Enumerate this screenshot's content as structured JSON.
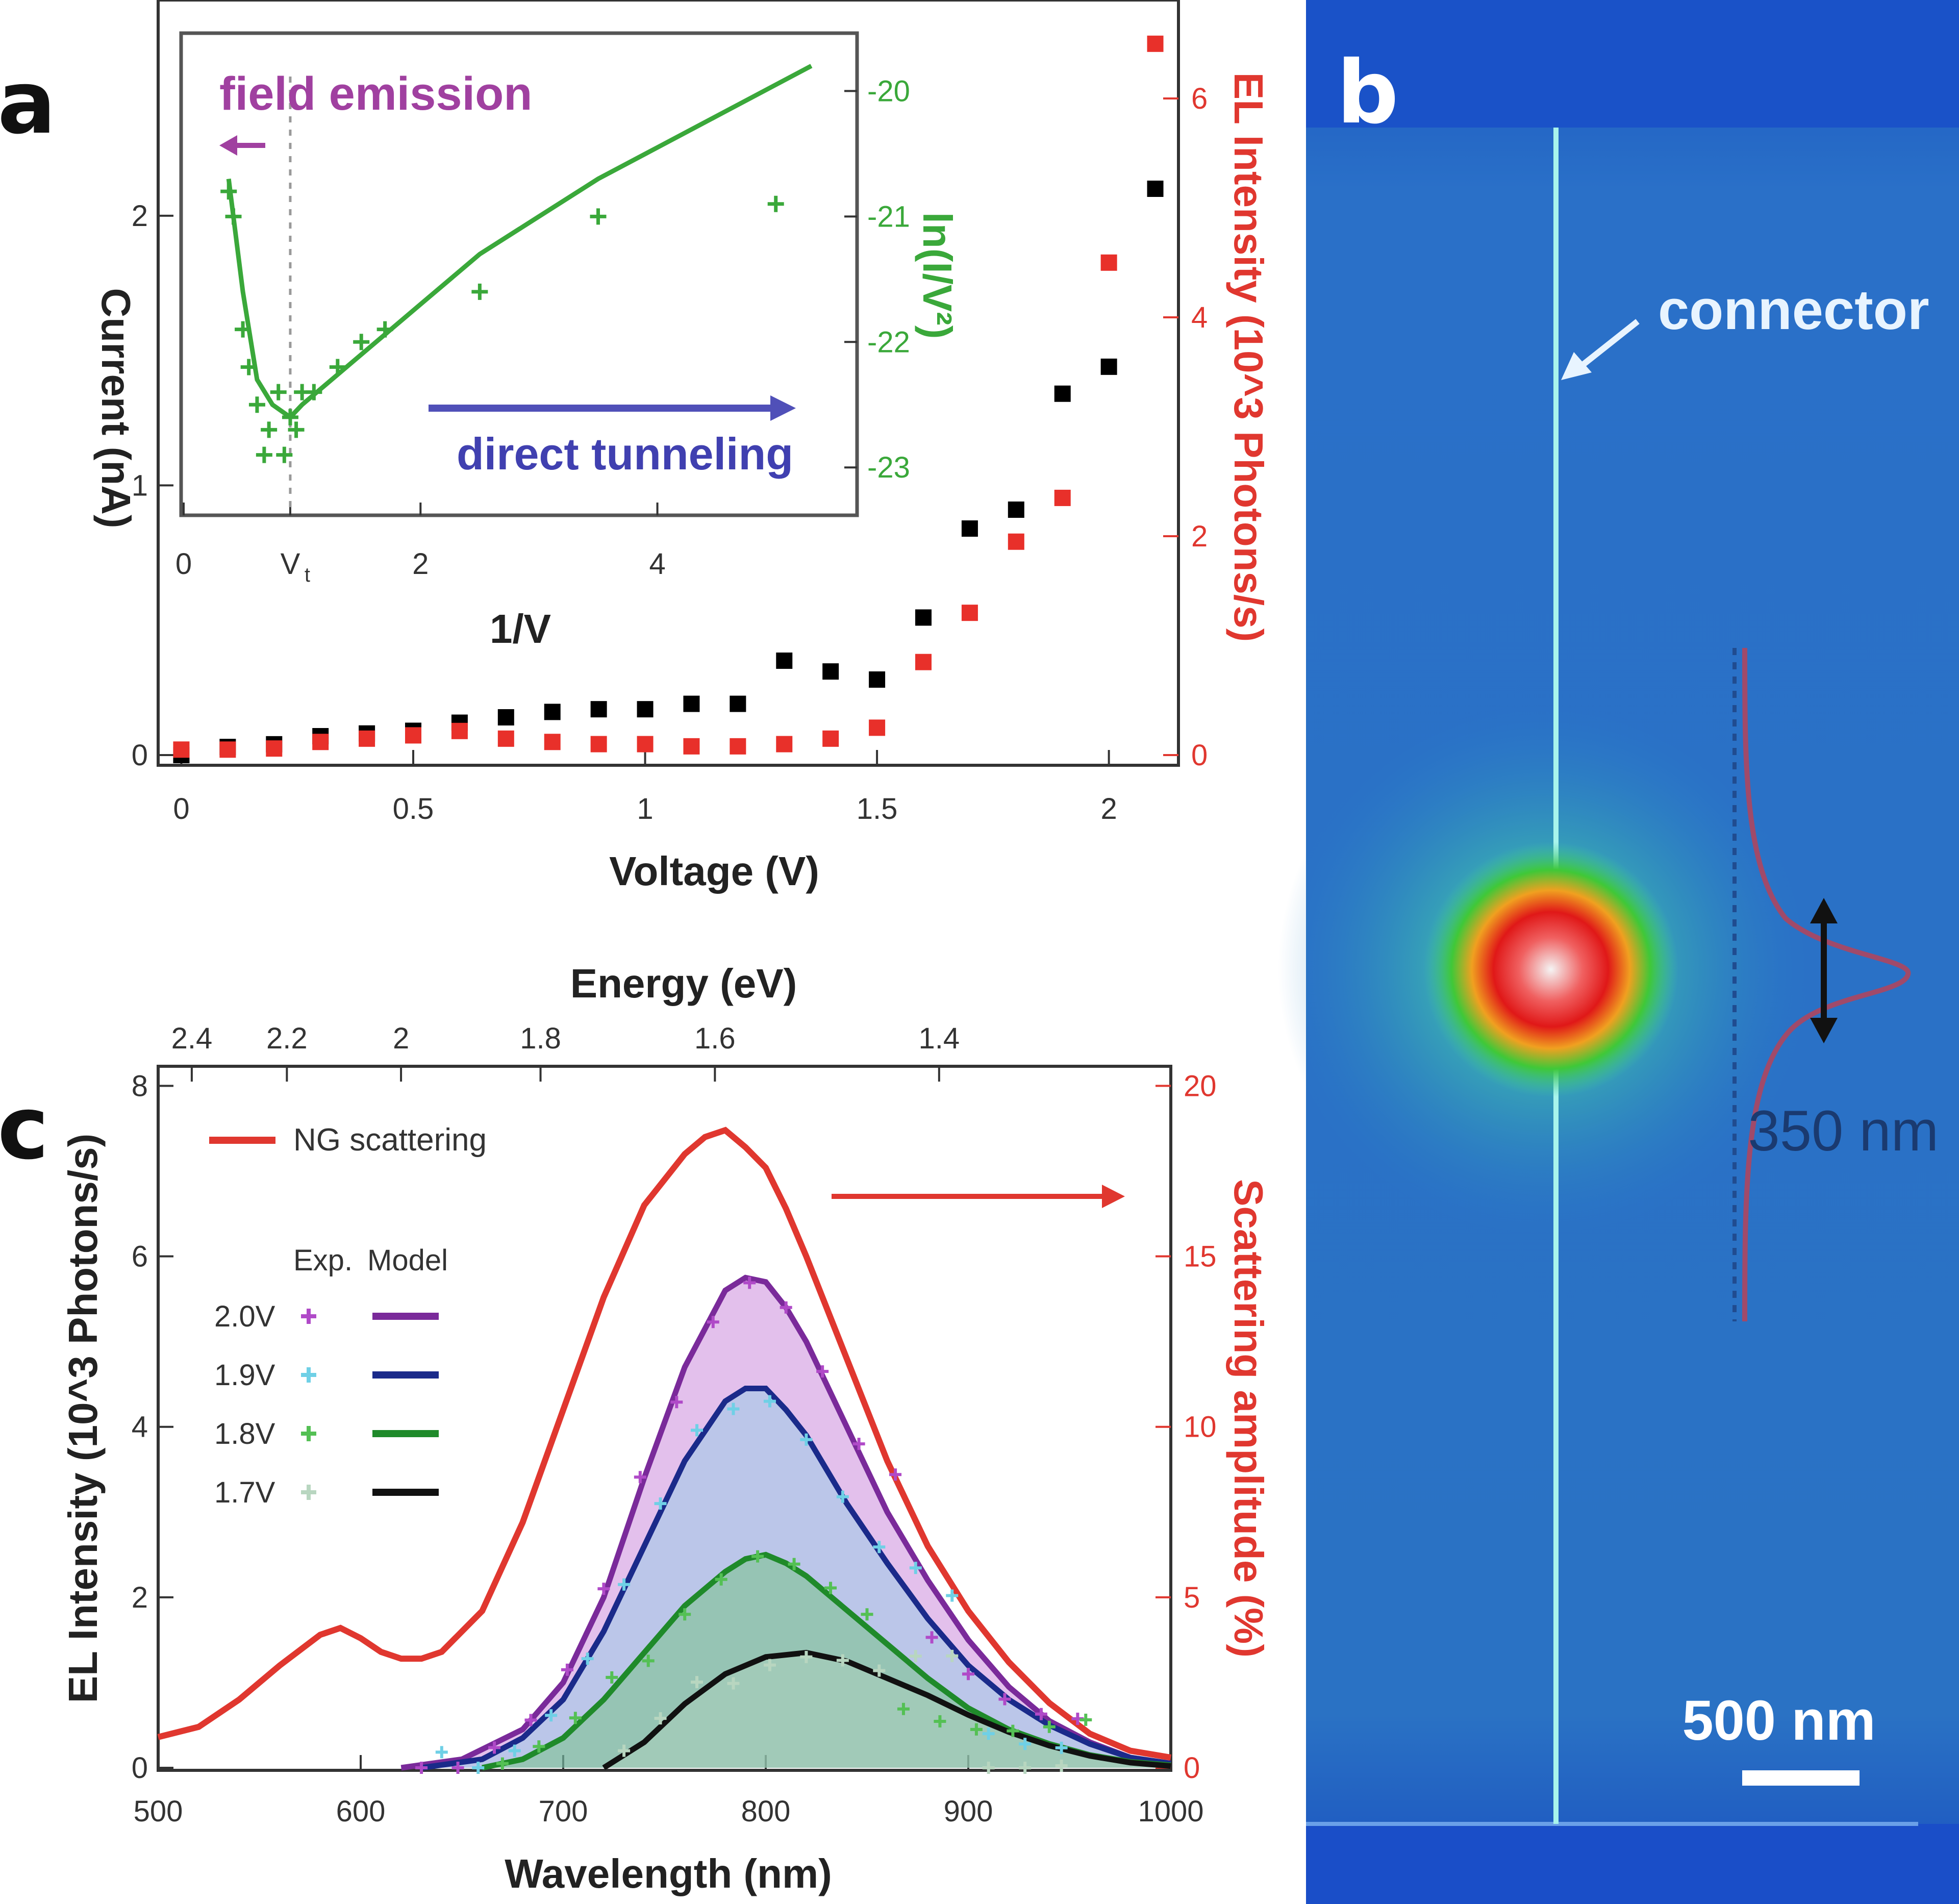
{
  "figure": {
    "panels": [
      {
        "id": "a",
        "letter": "a"
      },
      {
        "id": "b",
        "letter": "b"
      },
      {
        "id": "c",
        "letter": "c"
      }
    ]
  },
  "chart_data": [
    {
      "id": "a",
      "type": "scatter",
      "xlabel": "Voltage (V)",
      "ylabel": "Current (nA)",
      "ylabel_right": "EL Intensity (10^3 Photons/s)",
      "xlim": [
        -0.05,
        2.15
      ],
      "ylim": [
        0,
        2.8
      ],
      "ylim_right": [
        0,
        6.9
      ],
      "xticks": [
        "0",
        "0.5",
        "1",
        "1.5",
        "2"
      ],
      "xtick_values": [
        0,
        0.5,
        1,
        1.5,
        2
      ],
      "yticks": [
        "0",
        "1",
        "2"
      ],
      "ytick_values": [
        0,
        1,
        2
      ],
      "yticks_right": [
        "0",
        "2",
        "4",
        "6"
      ],
      "ytick_values_right": [
        0,
        2,
        4,
        6
      ],
      "series": [
        {
          "axis": "left",
          "color": "#000000",
          "x": [
            0,
            0.1,
            0.2,
            0.3,
            0.4,
            0.5,
            0.6,
            0.7,
            0.8,
            0.9,
            1.0,
            1.1,
            1.2,
            1.3,
            1.4,
            1.5,
            1.6,
            1.7,
            1.8,
            1.9,
            2.0,
            2.1
          ],
          "y": [
            0.0,
            0.03,
            0.04,
            0.07,
            0.08,
            0.09,
            0.12,
            0.14,
            0.16,
            0.17,
            0.17,
            0.19,
            0.19,
            0.35,
            0.31,
            0.28,
            0.51,
            0.84,
            0.91,
            1.34,
            1.44,
            2.1
          ]
        },
        {
          "axis": "right",
          "color": "#e8302a",
          "x": [
            0,
            0.1,
            0.2,
            0.3,
            0.4,
            0.5,
            0.6,
            0.7,
            0.8,
            0.9,
            1.0,
            1.1,
            1.2,
            1.3,
            1.4,
            1.5,
            1.6,
            1.7,
            1.8,
            1.9,
            2.0,
            2.1
          ],
          "y": [
            0.05,
            0.05,
            0.06,
            0.12,
            0.15,
            0.18,
            0.22,
            0.15,
            0.12,
            0.1,
            0.1,
            0.08,
            0.08,
            0.1,
            0.15,
            0.25,
            0.85,
            1.3,
            1.95,
            2.35,
            4.5,
            6.5
          ]
        }
      ],
      "inset": {
        "type": "scatter",
        "xlabel": "1/V",
        "ylabel": "ln(I/V²)",
        "xlim": [
          0,
          5.6
        ],
        "ylim": [
          -23.3,
          -19.6
        ],
        "xticks": [
          "0",
          "V",
          "2",
          "4"
        ],
        "xtick_sub": "t",
        "xtick_values": [
          0,
          0.9,
          2,
          4
        ],
        "yticks": [
          "-20",
          "-21",
          "-22",
          "-23"
        ],
        "ytick_values": [
          -20,
          -21,
          -22,
          -23
        ],
        "vt": 0.9,
        "color": "#3aa83a",
        "points_x": [
          0.38,
          0.42,
          0.5,
          0.55,
          0.62,
          0.68,
          0.72,
          0.8,
          0.85,
          0.9,
          0.95,
          1.0,
          1.1,
          1.3,
          1.5,
          1.7,
          2.5,
          3.5,
          5.0
        ],
        "points_y": [
          -20.8,
          -21.0,
          -21.9,
          -22.2,
          -22.5,
          -22.9,
          -22.7,
          -22.4,
          -22.9,
          -22.6,
          -22.7,
          -22.4,
          -22.4,
          -22.2,
          -22.0,
          -21.9,
          -21.6,
          -21.0,
          -20.9
        ],
        "fit_x": [
          0.38,
          0.5,
          0.62,
          0.75,
          0.9,
          1.0,
          1.5,
          2.0,
          2.5,
          3.0,
          3.5,
          4.0,
          4.5,
          5.0,
          5.3
        ],
        "fit_y": [
          -20.7,
          -21.6,
          -22.3,
          -22.5,
          -22.6,
          -22.5,
          -22.1,
          -21.7,
          -21.3,
          -21.0,
          -20.7,
          -20.45,
          -20.2,
          -19.95,
          -19.8
        ],
        "annotations": [
          {
            "text": "field emission",
            "color": "#a040a0"
          },
          {
            "text": "direct tunneling",
            "color": "#4040b0"
          }
        ]
      }
    },
    {
      "id": "c",
      "type": "line",
      "xlabel": "Wavelength (nm)",
      "xlabel_top": "Energy (eV)",
      "ylabel": "EL Intensity (10^3 Photons/s)",
      "ylabel_right": "Scattering amplitude (%)",
      "xlim": [
        500,
        1000
      ],
      "ylim": [
        0,
        8.2
      ],
      "ylim_right": [
        0,
        20.5
      ],
      "xticks": [
        "500",
        "600",
        "700",
        "800",
        "900",
        "1000"
      ],
      "xtick_values": [
        500,
        600,
        700,
        800,
        900,
        1000
      ],
      "xticks_top": [
        "2.4",
        "2.2",
        "2",
        "1.8",
        "1.6",
        "1.4"
      ],
      "xtick_values_top": [
        2.4,
        2.2,
        2.0,
        1.8,
        1.6,
        1.4
      ],
      "yticks": [
        "0",
        "2",
        "4",
        "6",
        "8"
      ],
      "ytick_values": [
        0,
        2,
        4,
        6,
        8
      ],
      "yticks_right": [
        "0",
        "5",
        "10",
        "15",
        "20"
      ],
      "ytick_values_right": [
        0,
        5,
        10,
        15,
        20
      ],
      "legend": {
        "main_label": "NG scattering",
        "header_exp": "Exp.",
        "header_model": "Model",
        "rows": [
          {
            "label": "2.0V",
            "exp_color": "#b04ac8",
            "model_color": "#7a2a9a"
          },
          {
            "label": "1.9V",
            "exp_color": "#6fd0e6",
            "model_color": "#1a2a8a"
          },
          {
            "label": "1.8V",
            "exp_color": "#54c054",
            "model_color": "#1f8a2a"
          },
          {
            "label": "1.7V",
            "exp_color": "#b8d6c0",
            "model_color": "#111111"
          }
        ]
      },
      "scattering": {
        "name": "NG scattering",
        "axis": "right",
        "color": "#e0372f",
        "x": [
          500,
          520,
          540,
          560,
          580,
          590,
          600,
          610,
          620,
          630,
          640,
          660,
          680,
          700,
          720,
          740,
          760,
          770,
          780,
          790,
          800,
          810,
          820,
          840,
          860,
          880,
          900,
          920,
          940,
          960,
          980,
          1000
        ],
        "y": [
          0.9,
          1.2,
          2.0,
          3.0,
          3.9,
          4.1,
          3.8,
          3.4,
          3.2,
          3.2,
          3.4,
          4.6,
          7.2,
          10.5,
          13.8,
          16.5,
          18.0,
          18.5,
          18.7,
          18.2,
          17.6,
          16.4,
          15.0,
          12.0,
          9.0,
          6.5,
          4.6,
          3.1,
          1.9,
          1.0,
          0.5,
          0.3
        ]
      },
      "series": [
        {
          "name": "2.0V",
          "color": "#7a2a9a",
          "exp_color": "#b04ac8",
          "x": [
            620,
            650,
            680,
            700,
            720,
            740,
            760,
            780,
            790,
            800,
            810,
            820,
            840,
            860,
            880,
            900,
            920,
            940,
            960,
            980,
            1000
          ],
          "y": [
            0,
            0.1,
            0.45,
            1.0,
            2.0,
            3.4,
            4.7,
            5.6,
            5.75,
            5.7,
            5.4,
            5.0,
            4.0,
            3.0,
            2.2,
            1.5,
            0.95,
            0.55,
            0.3,
            0.12,
            0.05
          ]
        },
        {
          "name": "1.9V",
          "color": "#1a2a8a",
          "exp_color": "#6fd0e6",
          "x": [
            630,
            660,
            680,
            700,
            720,
            740,
            760,
            780,
            790,
            800,
            810,
            820,
            840,
            860,
            880,
            900,
            920,
            940,
            960,
            980,
            1000
          ],
          "y": [
            0,
            0.1,
            0.35,
            0.8,
            1.6,
            2.6,
            3.6,
            4.3,
            4.45,
            4.45,
            4.2,
            3.9,
            3.1,
            2.4,
            1.75,
            1.2,
            0.8,
            0.5,
            0.28,
            0.12,
            0.05
          ]
        },
        {
          "name": "1.8V",
          "color": "#1f8a2a",
          "exp_color": "#54c054",
          "x": [
            660,
            680,
            700,
            720,
            740,
            760,
            780,
            790,
            800,
            810,
            820,
            840,
            860,
            880,
            900,
            920,
            940,
            960,
            980,
            1000
          ],
          "y": [
            0,
            0.1,
            0.35,
            0.8,
            1.35,
            1.9,
            2.3,
            2.45,
            2.5,
            2.4,
            2.25,
            1.85,
            1.45,
            1.05,
            0.7,
            0.45,
            0.28,
            0.15,
            0.07,
            0.03
          ]
        },
        {
          "name": "1.7V",
          "color": "#111111",
          "exp_color": "#b8d6c0",
          "x": [
            720,
            740,
            760,
            780,
            800,
            820,
            840,
            860,
            880,
            900,
            920,
            940,
            960,
            980,
            1000
          ],
          "y": [
            0,
            0.3,
            0.75,
            1.1,
            1.3,
            1.35,
            1.25,
            1.05,
            0.85,
            0.62,
            0.42,
            0.26,
            0.14,
            0.06,
            0.02
          ]
        }
      ]
    }
  ],
  "image_b": {
    "connector_label": "connector",
    "profile_label": "350 nm",
    "scalebar_label": "500 nm",
    "colors": {
      "background": "#1f6fc6",
      "frame": "#1850c8",
      "line": "#9ff0e8",
      "glow_outer": "#3fc0a8",
      "glow_green": "#4ec840",
      "glow_red": "#e01818",
      "profile_curve": "#a04a6a"
    }
  }
}
